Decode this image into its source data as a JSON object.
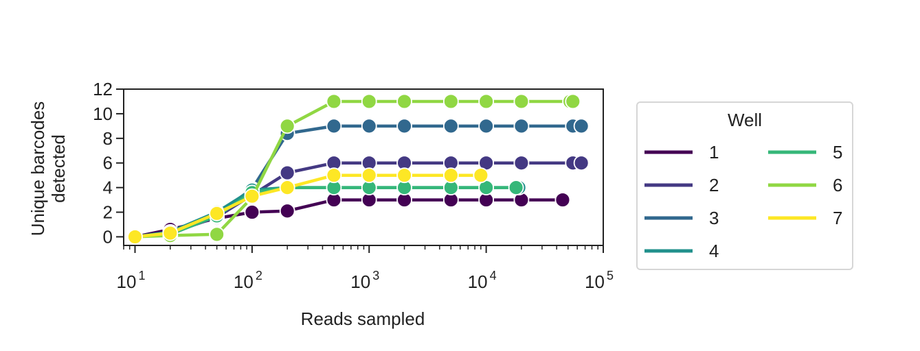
{
  "chart_data": {
    "type": "line",
    "title": "",
    "xlabel": "Reads sampled",
    "ylabel_lines": [
      "Unique barcodes",
      "detected"
    ],
    "x_scale": "log",
    "xlim": [
      8,
      100000
    ],
    "ylim": [
      -0.7,
      12
    ],
    "x_ticks": [
      {
        "value": 10,
        "base": "10",
        "exp": "1"
      },
      {
        "value": 100,
        "base": "10",
        "exp": "2"
      },
      {
        "value": 1000,
        "base": "10",
        "exp": "3"
      },
      {
        "value": 10000,
        "base": "10",
        "exp": "4"
      },
      {
        "value": 100000,
        "base": "10",
        "exp": "5"
      }
    ],
    "y_ticks": [
      "0",
      "2",
      "4",
      "6",
      "8",
      "10",
      "12"
    ],
    "grid": false,
    "legend": {
      "title": "Well",
      "placement": "outside right"
    },
    "series": [
      {
        "name": "1",
        "color": "#440154",
        "x": [
          10,
          20,
          50,
          100,
          200,
          500,
          1000,
          2000,
          5000,
          10000,
          20000,
          45000
        ],
        "y": [
          0,
          0.6,
          1.5,
          2.0,
          2.1,
          3,
          3,
          3,
          3,
          3,
          3,
          3
        ]
      },
      {
        "name": "2",
        "color": "#443983",
        "x": [
          10,
          20,
          50,
          100,
          200,
          500,
          1000,
          2000,
          5000,
          10000,
          20000,
          55000,
          65000
        ],
        "y": [
          0,
          0.3,
          1.6,
          3.4,
          5.2,
          6,
          6,
          6,
          6,
          6,
          6,
          6,
          6
        ]
      },
      {
        "name": "3",
        "color": "#31688e",
        "x": [
          10,
          20,
          50,
          100,
          200,
          500,
          1000,
          2000,
          5000,
          10000,
          20000,
          55000,
          65000
        ],
        "y": [
          0,
          0.2,
          1.8,
          3.9,
          8.4,
          9,
          9,
          9,
          9,
          9,
          9,
          9,
          9
        ]
      },
      {
        "name": "4",
        "color": "#21918c",
        "x": [
          10,
          20,
          50,
          100,
          200,
          500,
          1000,
          2000,
          5000,
          10000,
          18000,
          19000
        ],
        "y": [
          0,
          0.4,
          2.0,
          3.8,
          4.0,
          4,
          4,
          4,
          4,
          4,
          4,
          4
        ]
      },
      {
        "name": "5",
        "color": "#35b779",
        "x": [
          10,
          20,
          50,
          100,
          200,
          500,
          1000,
          2000,
          5000,
          10000,
          18000
        ],
        "y": [
          0,
          0.2,
          1.7,
          3.6,
          4.0,
          4,
          4,
          4,
          4,
          4,
          4
        ]
      },
      {
        "name": "6",
        "color": "#90d743",
        "x": [
          10,
          20,
          50,
          100,
          200,
          500,
          1000,
          2000,
          5000,
          10000,
          20000,
          52000,
          55000
        ],
        "y": [
          0,
          0.1,
          0.2,
          3.2,
          9.0,
          11,
          11,
          11,
          11,
          11,
          11,
          11,
          11
        ]
      },
      {
        "name": "7",
        "color": "#fde725",
        "x": [
          10,
          20,
          50,
          100,
          200,
          500,
          1000,
          2000,
          5000,
          9000
        ],
        "y": [
          0,
          0.3,
          1.9,
          3.3,
          4.0,
          5,
          5,
          5,
          5,
          5
        ]
      }
    ]
  }
}
